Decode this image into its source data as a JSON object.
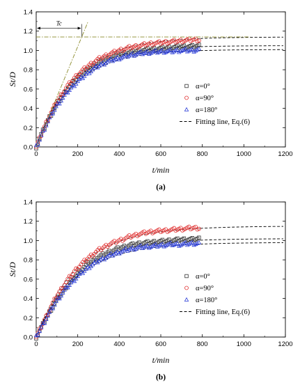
{
  "chart_data": [
    {
      "type": "scatter",
      "caption": "(a)",
      "xlabel": "t/min",
      "ylabel": "St/D",
      "xlim": [
        0,
        1200
      ],
      "ylim": [
        0,
        1.4
      ],
      "xticks": [
        0,
        200,
        400,
        600,
        800,
        1000,
        1200
      ],
      "yticks": [
        0.0,
        0.2,
        0.4,
        0.6,
        0.8,
        1.0,
        1.2,
        1.4
      ],
      "grid": false,
      "legend_position": "right",
      "annotation": {
        "label": "Tc",
        "tc_x": 220,
        "asymptote_y": 1.14,
        "color": "#8a8a2a"
      },
      "series": [
        {
          "name": "α=0°",
          "marker": "square",
          "color": "#333333",
          "data_end": 790,
          "fit_end": 1200,
          "points": [
            [
              0,
              0
            ],
            [
              25,
              0.13
            ],
            [
              50,
              0.25
            ],
            [
              75,
              0.35
            ],
            [
              100,
              0.45
            ],
            [
              150,
              0.6
            ],
            [
              200,
              0.72
            ],
            [
              250,
              0.8
            ],
            [
              300,
              0.87
            ],
            [
              350,
              0.92
            ],
            [
              400,
              0.96
            ],
            [
              450,
              0.98
            ],
            [
              500,
              1.0
            ],
            [
              550,
              1.01
            ],
            [
              600,
              1.02
            ],
            [
              650,
              1.03
            ],
            [
              700,
              1.04
            ],
            [
              750,
              1.04
            ],
            [
              790,
              1.05
            ]
          ]
        },
        {
          "name": "α=90°",
          "marker": "circle",
          "color": "#e03030",
          "data_end": 790,
          "fit_end": 1200,
          "points": [
            [
              0,
              0
            ],
            [
              25,
              0.13
            ],
            [
              50,
              0.26
            ],
            [
              75,
              0.37
            ],
            [
              100,
              0.47
            ],
            [
              150,
              0.63
            ],
            [
              200,
              0.75
            ],
            [
              250,
              0.84
            ],
            [
              300,
              0.91
            ],
            [
              350,
              0.96
            ],
            [
              400,
              1.0
            ],
            [
              450,
              1.03
            ],
            [
              500,
              1.05
            ],
            [
              550,
              1.07
            ],
            [
              600,
              1.08
            ],
            [
              650,
              1.09
            ],
            [
              700,
              1.1
            ],
            [
              750,
              1.11
            ],
            [
              790,
              1.11
            ]
          ]
        },
        {
          "name": "α=180°",
          "marker": "triangle",
          "color": "#2c3ed8",
          "data_end": 790,
          "fit_end": 1200,
          "points": [
            [
              0,
              0
            ],
            [
              25,
              0.12
            ],
            [
              50,
              0.24
            ],
            [
              75,
              0.34
            ],
            [
              100,
              0.43
            ],
            [
              150,
              0.57
            ],
            [
              200,
              0.68
            ],
            [
              250,
              0.77
            ],
            [
              300,
              0.84
            ],
            [
              350,
              0.89
            ],
            [
              400,
              0.92
            ],
            [
              450,
              0.95
            ],
            [
              500,
              0.97
            ],
            [
              550,
              0.98
            ],
            [
              600,
              0.99
            ],
            [
              650,
              0.99
            ],
            [
              700,
              1.0
            ],
            [
              750,
              1.0
            ],
            [
              790,
              1.01
            ]
          ]
        }
      ],
      "fit_label": "Fitting line, Eq.(6)",
      "fit_asymptotes": [
        1.05,
        1.14,
        1.01
      ]
    },
    {
      "type": "scatter",
      "caption": "(b)",
      "xlabel": "t/min",
      "ylabel": "St/D",
      "xlim": [
        0,
        1200
      ],
      "ylim": [
        0,
        1.4
      ],
      "xticks": [
        0,
        200,
        400,
        600,
        800,
        1000,
        1200
      ],
      "yticks": [
        0.0,
        0.2,
        0.4,
        0.6,
        0.8,
        1.0,
        1.2,
        1.4
      ],
      "grid": false,
      "legend_position": "right",
      "series": [
        {
          "name": "α=0°",
          "marker": "square",
          "color": "#333333",
          "data_end": 790,
          "fit_end": 1200,
          "points": [
            [
              0,
              0
            ],
            [
              25,
              0.1
            ],
            [
              50,
              0.2
            ],
            [
              75,
              0.3
            ],
            [
              100,
              0.39
            ],
            [
              150,
              0.54
            ],
            [
              200,
              0.66
            ],
            [
              250,
              0.76
            ],
            [
              300,
              0.83
            ],
            [
              350,
              0.88
            ],
            [
              400,
              0.92
            ],
            [
              450,
              0.95
            ],
            [
              500,
              0.97
            ],
            [
              550,
              0.98
            ],
            [
              600,
              0.99
            ],
            [
              650,
              1.0
            ],
            [
              700,
              1.01
            ],
            [
              750,
              1.01
            ],
            [
              790,
              1.02
            ]
          ]
        },
        {
          "name": "α=90°",
          "marker": "circle",
          "color": "#e03030",
          "data_end": 790,
          "fit_end": 1200,
          "points": [
            [
              0,
              0
            ],
            [
              25,
              0.11
            ],
            [
              50,
              0.22
            ],
            [
              75,
              0.33
            ],
            [
              100,
              0.43
            ],
            [
              150,
              0.59
            ],
            [
              200,
              0.72
            ],
            [
              250,
              0.82
            ],
            [
              300,
              0.9
            ],
            [
              350,
              0.96
            ],
            [
              400,
              1.0
            ],
            [
              450,
              1.04
            ],
            [
              500,
              1.07
            ],
            [
              550,
              1.09
            ],
            [
              600,
              1.1
            ],
            [
              650,
              1.11
            ],
            [
              700,
              1.12
            ],
            [
              750,
              1.13
            ],
            [
              790,
              1.13
            ]
          ]
        },
        {
          "name": "α=180°",
          "marker": "triangle",
          "color": "#2c3ed8",
          "data_end": 790,
          "fit_end": 1200,
          "points": [
            [
              0,
              0
            ],
            [
              25,
              0.1
            ],
            [
              50,
              0.2
            ],
            [
              75,
              0.29
            ],
            [
              100,
              0.38
            ],
            [
              150,
              0.52
            ],
            [
              200,
              0.63
            ],
            [
              250,
              0.72
            ],
            [
              300,
              0.79
            ],
            [
              350,
              0.84
            ],
            [
              400,
              0.88
            ],
            [
              450,
              0.91
            ],
            [
              500,
              0.93
            ],
            [
              550,
              0.94
            ],
            [
              600,
              0.95
            ],
            [
              650,
              0.96
            ],
            [
              700,
              0.96
            ],
            [
              750,
              0.97
            ],
            [
              790,
              0.97
            ]
          ]
        }
      ],
      "fit_label": "Fitting line, Eq.(6)",
      "fit_asymptotes": [
        1.02,
        1.15,
        0.98
      ]
    }
  ]
}
